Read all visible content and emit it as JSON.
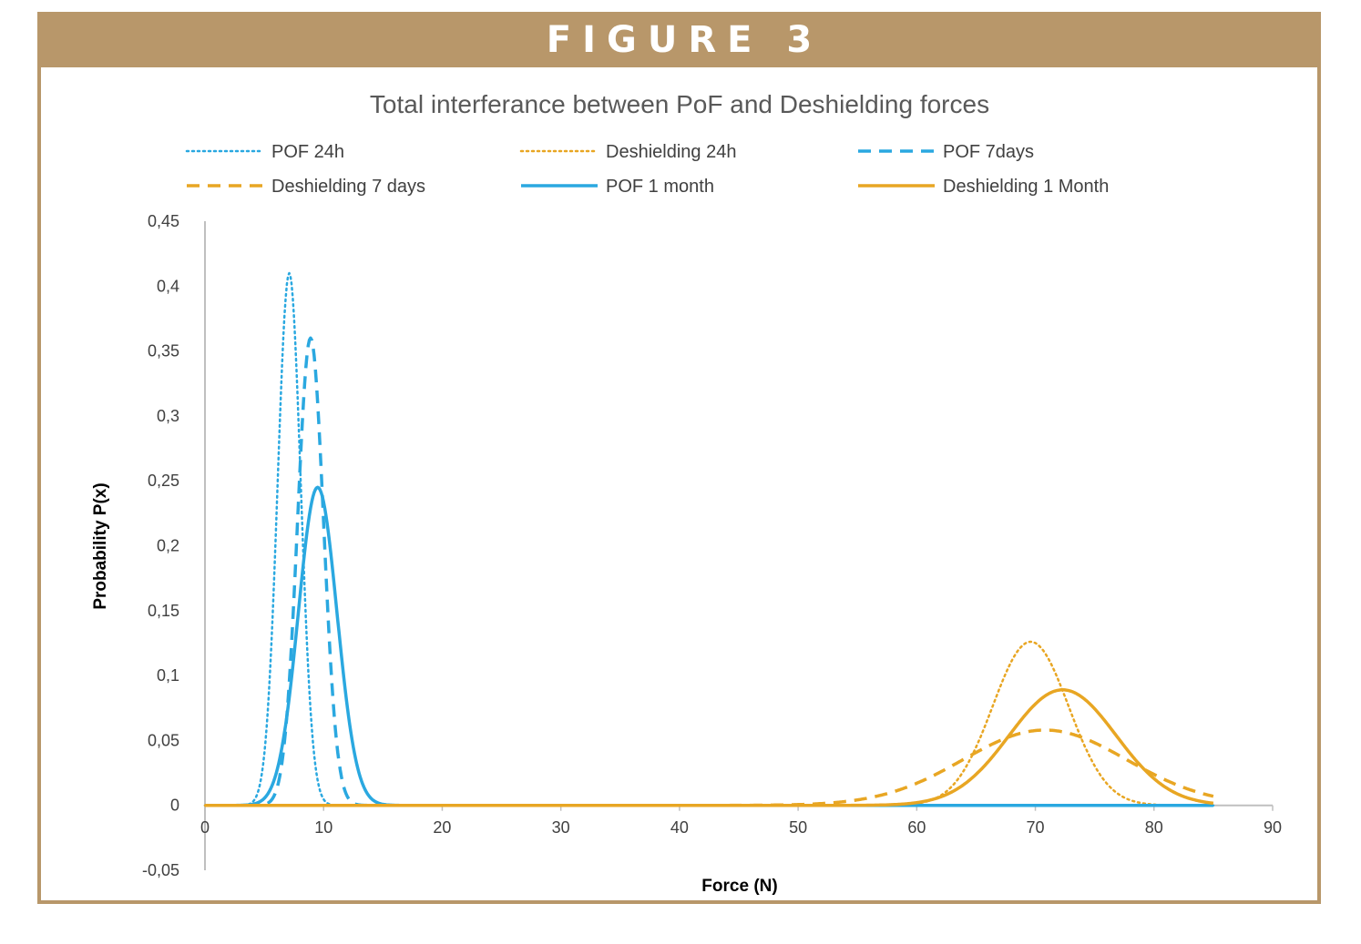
{
  "banner": {
    "title": "FIGURE 3"
  },
  "colors": {
    "banner": "#b8976a",
    "pof": "#2aa8e0",
    "deshielding": "#e8a623",
    "axis": "#bfbfbf"
  },
  "chart_data": {
    "type": "line",
    "title": "Total interferance between PoF and Deshielding forces",
    "xlabel": "Force (N)",
    "ylabel": "Probability P(x)",
    "xlim": [
      0,
      90
    ],
    "ylim": [
      -0.05,
      0.45
    ],
    "x_ticks": [
      "0",
      "10",
      "20",
      "30",
      "40",
      "50",
      "60",
      "70",
      "80",
      "90"
    ],
    "y_ticks": [
      "-0,05",
      "0",
      "0,05",
      "0,1",
      "0,15",
      "0,2",
      "0,25",
      "0,3",
      "0,35",
      "0,4",
      "0,45"
    ],
    "legend_position": "top",
    "series": [
      {
        "name": "POF 24h",
        "color": "#2aa8e0",
        "style": "dotted",
        "x_range": [
          0,
          85
        ],
        "peak_x": 7.1,
        "peak_y": 0.41,
        "spread": 0.97
      },
      {
        "name": "Deshielding 24h",
        "color": "#e8a623",
        "style": "dotted",
        "x_range": [
          0,
          85
        ],
        "peak_x": 69.6,
        "peak_y": 0.126,
        "spread": 3.2
      },
      {
        "name": "POF 7days",
        "color": "#2aa8e0",
        "style": "dashed",
        "x_range": [
          0,
          85
        ],
        "peak_x": 8.9,
        "peak_y": 0.36,
        "spread": 1.1
      },
      {
        "name": "Deshielding 7 days",
        "color": "#e8a623",
        "style": "dashed",
        "x_range": [
          0,
          85
        ],
        "peak_x": 70.8,
        "peak_y": 0.058,
        "spread": 6.9
      },
      {
        "name": "POF 1 month",
        "color": "#2aa8e0",
        "style": "solid",
        "x_range": [
          0,
          85
        ],
        "peak_x": 9.5,
        "peak_y": 0.245,
        "spread": 1.63
      },
      {
        "name": "Deshielding 1 Month",
        "color": "#e8a623",
        "style": "solid",
        "x_range": [
          0,
          85
        ],
        "peak_x": 72.3,
        "peak_y": 0.089,
        "spread": 4.5
      }
    ]
  }
}
